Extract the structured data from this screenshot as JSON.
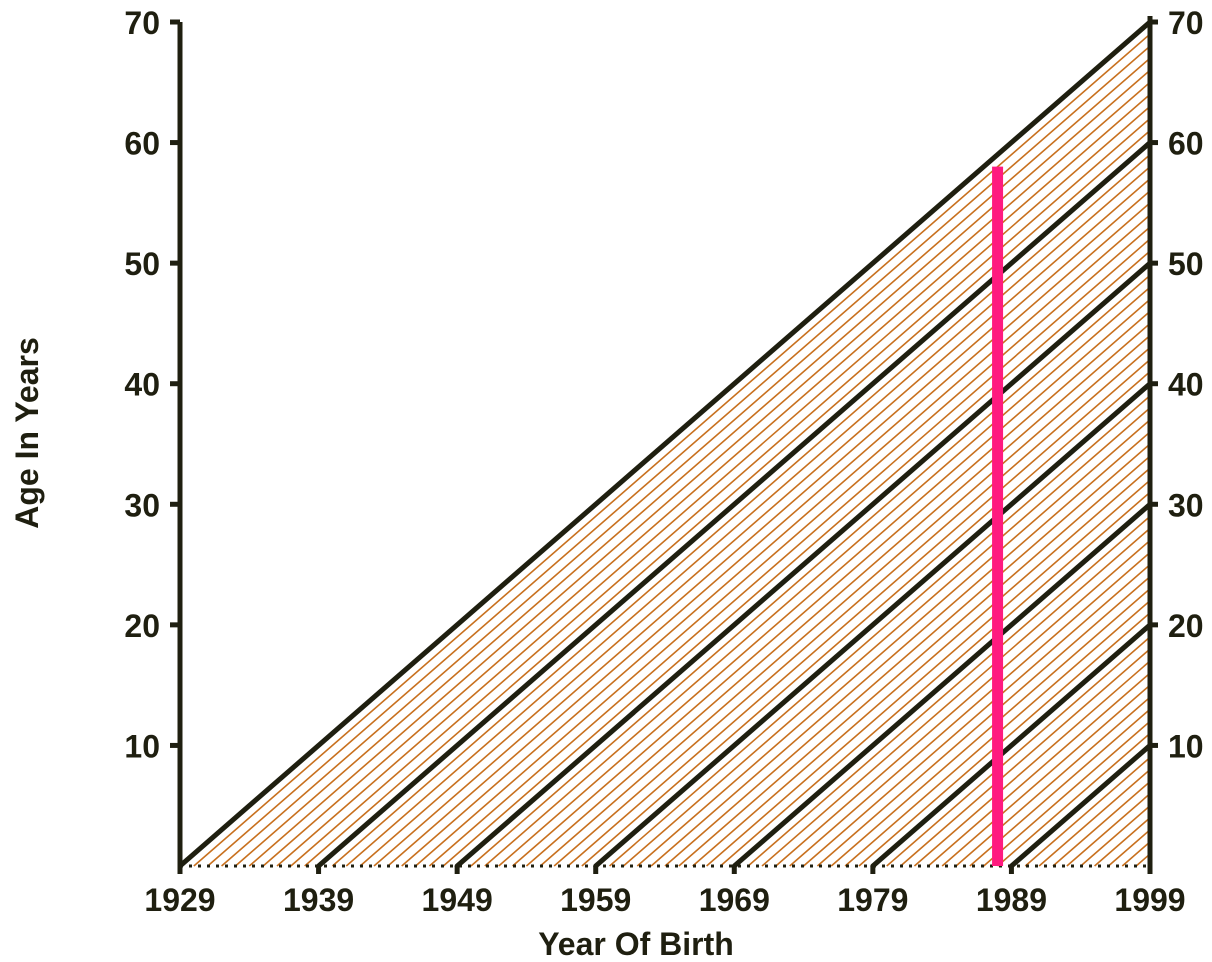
{
  "chart_data": {
    "type": "line",
    "title": "",
    "xlabel": "Year Of Birth",
    "ylabel": "Age In Years",
    "xlim": [
      1929,
      1999
    ],
    "ylim": [
      0,
      70
    ],
    "x_ticks": [
      "1929",
      "1939",
      "1949",
      "1959",
      "1969",
      "1979",
      "1989",
      "1999"
    ],
    "x_tick_values": [
      1929,
      1939,
      1949,
      1959,
      1969,
      1979,
      1989,
      1999
    ],
    "y_ticks_left": [
      "10",
      "20",
      "30",
      "40",
      "50",
      "60",
      "70"
    ],
    "y_ticks_right": [
      "10",
      "20",
      "30",
      "40",
      "50",
      "60",
      "70"
    ],
    "y_tick_values": [
      10,
      20,
      30,
      40,
      50,
      60,
      70
    ],
    "grid": false,
    "age_lines": [
      {
        "x": [
          1929,
          1999
        ],
        "y": [
          0,
          70
        ]
      },
      {
        "x": [
          1939,
          1999
        ],
        "y": [
          0,
          60
        ]
      },
      {
        "x": [
          1949,
          1999
        ],
        "y": [
          0,
          50
        ]
      },
      {
        "x": [
          1959,
          1999
        ],
        "y": [
          0,
          40
        ]
      },
      {
        "x": [
          1969,
          1999
        ],
        "y": [
          0,
          30
        ]
      },
      {
        "x": [
          1979,
          1999
        ],
        "y": [
          0,
          20
        ]
      },
      {
        "x": [
          1989,
          1999
        ],
        "y": [
          0,
          10
        ]
      }
    ],
    "highlight_line": {
      "x": 1988,
      "y": [
        0,
        58
      ],
      "color": "#ff1a7f"
    },
    "colors": {
      "axis": "#1f1f10",
      "age_line": "#1f1f10",
      "hatch": "#c8701e",
      "highlight": "#ff1a7f"
    }
  }
}
